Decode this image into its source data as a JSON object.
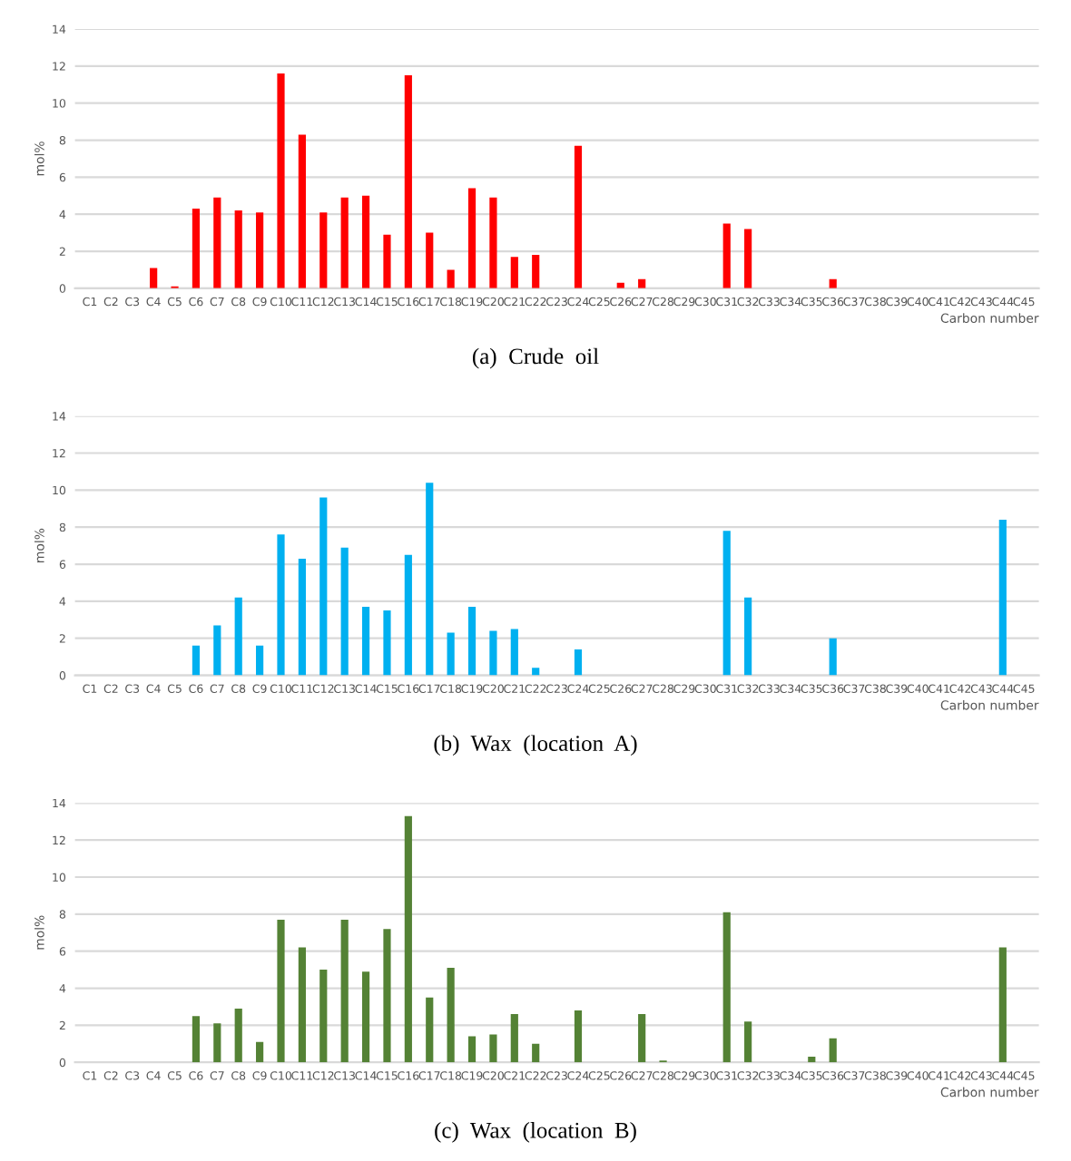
{
  "chart_data": [
    {
      "type": "bar",
      "xlabel": "Carbon number",
      "ylabel": "mol%",
      "annotations": [
        "(a)  Crude  oil"
      ],
      "categories": [
        "C1",
        "C2",
        "C3",
        "C4",
        "C5",
        "C6",
        "C7",
        "C8",
        "C9",
        "C10",
        "C11",
        "C12",
        "C13",
        "C14",
        "C15",
        "C16",
        "C17",
        "C18",
        "C19",
        "C20",
        "C21",
        "C22",
        "C23",
        "C24",
        "C25",
        "C26",
        "C27",
        "C28",
        "C29",
        "C30",
        "C31",
        "C32",
        "C33",
        "C34",
        "C35",
        "C36",
        "C37",
        "C38",
        "C39",
        "C40",
        "C41",
        "C42",
        "C43",
        "C44",
        "C45"
      ],
      "series": [
        {
          "color": "#ff0000",
          "values": [
            0,
            0,
            0,
            1.1,
            0.1,
            4.3,
            4.9,
            4.2,
            4.1,
            11.6,
            8.3,
            4.1,
            4.9,
            5.0,
            2.9,
            11.5,
            3.0,
            1.0,
            5.4,
            4.9,
            1.7,
            1.8,
            0,
            7.7,
            0,
            0.3,
            0.5,
            0,
            0,
            0,
            3.5,
            3.2,
            0,
            0,
            0,
            0.5,
            0,
            0,
            0,
            0,
            0,
            0,
            0,
            0,
            0
          ]
        }
      ],
      "ylim": [
        0,
        14
      ],
      "yticks": [
        0,
        2,
        4,
        6,
        8,
        10,
        12,
        14
      ],
      "grid": "y"
    },
    {
      "type": "bar",
      "xlabel": "Carbon number",
      "ylabel": "mol%",
      "annotations": [
        "(b)  Wax  (location  A)"
      ],
      "categories": [
        "C1",
        "C2",
        "C3",
        "C4",
        "C5",
        "C6",
        "C7",
        "C8",
        "C9",
        "C10",
        "C11",
        "C12",
        "C13",
        "C14",
        "C15",
        "C16",
        "C17",
        "C18",
        "C19",
        "C20",
        "C21",
        "C22",
        "C23",
        "C24",
        "C25",
        "C26",
        "C27",
        "C28",
        "C29",
        "C30",
        "C31",
        "C32",
        "C33",
        "C34",
        "C35",
        "C36",
        "C37",
        "C38",
        "C39",
        "C40",
        "C41",
        "C42",
        "C43",
        "C44",
        "C45"
      ],
      "series": [
        {
          "color": "#00b0f0",
          "values": [
            0,
            0,
            0,
            0,
            0,
            1.6,
            2.7,
            4.2,
            1.6,
            7.6,
            6.3,
            9.6,
            6.9,
            3.7,
            3.5,
            6.5,
            10.4,
            2.3,
            3.7,
            2.4,
            2.5,
            0.4,
            0,
            1.4,
            0,
            0,
            0,
            0,
            0,
            0,
            7.8,
            4.2,
            0,
            0,
            0,
            2.0,
            0,
            0,
            0,
            0,
            0,
            0,
            0,
            8.4,
            0
          ]
        }
      ],
      "ylim": [
        0,
        14
      ],
      "yticks": [
        0,
        2,
        4,
        6,
        8,
        10,
        12,
        14
      ],
      "grid": "y"
    },
    {
      "type": "bar",
      "xlabel": "Carbon number",
      "ylabel": "mol%",
      "annotations": [
        "(c)  Wax  (location  B)"
      ],
      "categories": [
        "C1",
        "C2",
        "C3",
        "C4",
        "C5",
        "C6",
        "C7",
        "C8",
        "C9",
        "C10",
        "C11",
        "C12",
        "C13",
        "C14",
        "C15",
        "C16",
        "C17",
        "C18",
        "C19",
        "C20",
        "C21",
        "C22",
        "C23",
        "C24",
        "C25",
        "C26",
        "C27",
        "C28",
        "C29",
        "C30",
        "C31",
        "C32",
        "C33",
        "C34",
        "C35",
        "C36",
        "C37",
        "C38",
        "C39",
        "C40",
        "C41",
        "C42",
        "C43",
        "C44",
        "C45"
      ],
      "series": [
        {
          "color": "#548235",
          "values": [
            0,
            0,
            0,
            0,
            0,
            2.5,
            2.1,
            2.9,
            1.1,
            7.7,
            6.2,
            5.0,
            7.7,
            4.9,
            7.2,
            13.3,
            3.5,
            5.1,
            1.4,
            1.5,
            2.6,
            1.0,
            0,
            2.8,
            0,
            0,
            2.6,
            0.1,
            0,
            0,
            8.1,
            2.2,
            0,
            0,
            0.3,
            1.3,
            0,
            0,
            0,
            0,
            0,
            0,
            0,
            6.2,
            0
          ]
        }
      ],
      "ylim": [
        0,
        14
      ],
      "yticks": [
        0,
        2,
        4,
        6,
        8,
        10,
        12,
        14
      ],
      "grid": "y"
    }
  ]
}
